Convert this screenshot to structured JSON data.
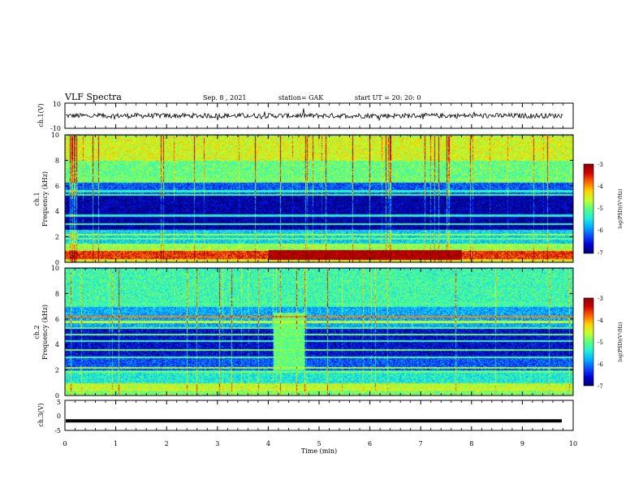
{
  "header": {
    "title": "VLF Spectra",
    "date": "Sep. 8 , 2021",
    "station": "station= GAK",
    "start": "start UT = 20: 20: 0"
  },
  "colors": {
    "background": "#ffffff",
    "axes": "#000000",
    "spectrogram_bg": "#00006e",
    "colormap": [
      "#00006e",
      "#0000d8",
      "#0a50ff",
      "#00b4ff",
      "#22f0d8",
      "#5aff7a",
      "#c8ff28",
      "#ffd200",
      "#ff6400",
      "#d20000",
      "#8c0000"
    ]
  },
  "chart_data": [
    {
      "type": "line",
      "panel": "ch1-waveform",
      "ylabel": "ch.1(V)",
      "ylim": [
        -10,
        10
      ],
      "yticks": [
        "10",
        "-10"
      ],
      "xlim": [
        0,
        10
      ],
      "series": [
        {
          "values_summary": "noisy waveform centred near 0 V, amplitude about ±2 V with spikes to about ±5 V",
          "mean": 0,
          "amplitude": 2
        }
      ]
    },
    {
      "type": "heatmap",
      "panel": "ch1-spectrogram",
      "ylabel": "ch.1 Frequency (kHz)",
      "ylim": [
        0,
        10
      ],
      "yticks": [
        "0",
        "2",
        "4",
        "6",
        "8",
        "10"
      ],
      "xlim": [
        0,
        10
      ],
      "colorbar": {
        "label": "log(PSD)(V²/Hz)",
        "range": [
          -7,
          -3
        ],
        "ticks": [
          "-3",
          "-4",
          "-5",
          "-6",
          "-7"
        ]
      },
      "noise_layers": [
        {
          "f_from": 0.0,
          "f_to": 0.3,
          "value": -4.5
        },
        {
          "f_from": 0.3,
          "f_to": 0.9,
          "value": -3.6
        },
        {
          "f_from": 0.9,
          "f_to": 1.4,
          "value": -4.8
        },
        {
          "f_from": 1.4,
          "f_to": 2.6,
          "value": -5.6
        },
        {
          "f_from": 2.6,
          "f_to": 5.4,
          "value": -6.8
        },
        {
          "f_from": 5.4,
          "f_to": 6.3,
          "value": -6.2
        },
        {
          "f_from": 6.3,
          "f_to": 8.0,
          "value": -5.0
        },
        {
          "f_from": 8.0,
          "f_to": 10.0,
          "value": -4.5
        }
      ],
      "lines": [
        {
          "f": 0.3,
          "value": -4.2
        },
        {
          "f": 0.9,
          "value": -4.3
        },
        {
          "f": 1.4,
          "value": -4.8
        },
        {
          "f": 1.9,
          "value": -4.9
        },
        {
          "f": 2.2,
          "value": -4.8
        },
        {
          "f": 3.0,
          "value": -5.2
        },
        {
          "f": 3.7,
          "value": -5.4
        },
        {
          "f": 5.3,
          "value": -5.1
        },
        {
          "f": 5.6,
          "value": -5.3
        },
        {
          "f": 6.5,
          "value": -5.0
        },
        {
          "f": 8.6,
          "value": -5.3
        }
      ],
      "event": {
        "t_from": 4.0,
        "t_to": 7.8,
        "f_from": 0.2,
        "f_to": 1.0,
        "value": -3.2
      }
    },
    {
      "type": "heatmap",
      "panel": "ch2-spectrogram",
      "ylabel": "ch.2 Frequency (kHz)",
      "ylim": [
        0,
        10
      ],
      "yticks": [
        "0",
        "2",
        "4",
        "6",
        "8",
        "10"
      ],
      "xlim": [
        0,
        10
      ],
      "colorbar": {
        "label": "log(PSD)(V²/Hz)",
        "range": [
          -7,
          -3
        ],
        "ticks": [
          "-3",
          "-4",
          "-5",
          "-6",
          "-7"
        ]
      },
      "noise_layers": [
        {
          "f_from": 0.0,
          "f_to": 0.4,
          "value": -4.9
        },
        {
          "f_from": 0.4,
          "f_to": 1.0,
          "value": -4.6
        },
        {
          "f_from": 1.0,
          "f_to": 2.0,
          "value": -5.4
        },
        {
          "f_from": 2.0,
          "f_to": 3.0,
          "value": -6.2
        },
        {
          "f_from": 3.0,
          "f_to": 5.4,
          "value": -6.6
        },
        {
          "f_from": 5.4,
          "f_to": 7.0,
          "value": -5.8
        },
        {
          "f_from": 7.0,
          "f_to": 10.0,
          "value": -5.2
        }
      ],
      "lines": [
        {
          "f": 0.5,
          "value": -4.6
        },
        {
          "f": 1.9,
          "value": -4.9
        },
        {
          "f": 2.2,
          "value": -4.7
        },
        {
          "f": 3.0,
          "value": -5.1
        },
        {
          "f": 3.6,
          "value": -4.9
        },
        {
          "f": 4.3,
          "value": -5.2
        },
        {
          "f": 4.8,
          "value": -4.9
        },
        {
          "f": 5.3,
          "value": -5.0
        },
        {
          "f": 5.8,
          "value": -4.6
        },
        {
          "f": 6.2,
          "value": -3.9
        },
        {
          "f": 7.2,
          "value": -5.3
        },
        {
          "f": 9.0,
          "value": -5.4
        }
      ],
      "event": {
        "t_from": 4.1,
        "t_to": 4.7,
        "f_from": 2.0,
        "f_to": 6.5,
        "value": -5.0
      }
    },
    {
      "type": "line",
      "panel": "ch3-waveform",
      "ylabel": "ch.3(V)",
      "ylim": [
        -5,
        5
      ],
      "yticks": [
        "5",
        "0",
        "-5"
      ],
      "xlabel": "Time (min)",
      "xlim": [
        0,
        10
      ],
      "xticks": [
        "0",
        "1",
        "2",
        "3",
        "4",
        "5",
        "6",
        "7",
        "8",
        "9",
        "10"
      ],
      "series": [
        {
          "values_summary": "constant level",
          "value": -1.8
        }
      ]
    }
  ]
}
